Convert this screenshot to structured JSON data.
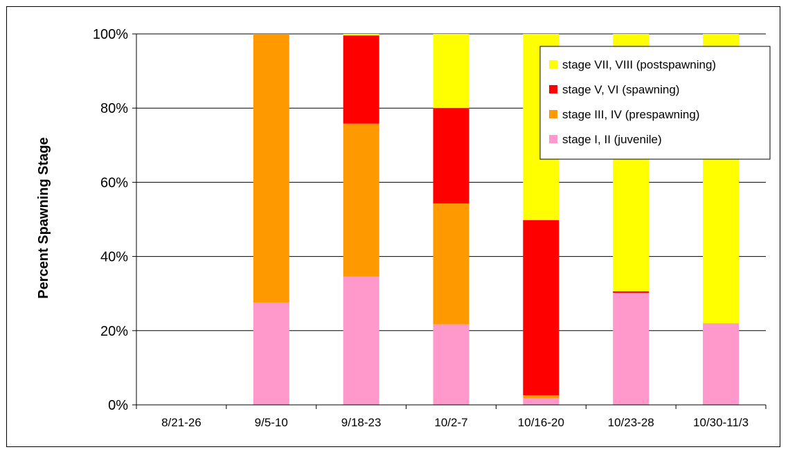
{
  "chart_data": {
    "type": "bar",
    "stacked": true,
    "percent": true,
    "title": "",
    "xlabel": "",
    "ylabel": "Percent Spawning Stage",
    "ylim": [
      0,
      100
    ],
    "yticks": [
      "0%",
      "20%",
      "40%",
      "60%",
      "80%",
      "100%"
    ],
    "ytick_values": [
      0,
      20,
      40,
      60,
      80,
      100
    ],
    "grid": true,
    "legend_position": "top-right",
    "categories": [
      "8/21-26",
      "9/5-10",
      "9/18-23",
      "10/2-7",
      "10/16-20",
      "10/23-28",
      "10/30-11/3"
    ],
    "series": [
      {
        "name": "stage I, II (juvenile)",
        "color": "#ff99cc",
        "values": [
          0,
          27.6,
          34.6,
          21.7,
          1.8,
          30.2,
          22.0
        ]
      },
      {
        "name": "stage III, IV (prespawning)",
        "color": "#ff9900",
        "values": [
          0,
          72.4,
          41.2,
          32.6,
          0.8,
          0,
          0
        ]
      },
      {
        "name": "stage V, VI (spawning)",
        "color": "#ff0000",
        "values": [
          0,
          0,
          23.8,
          25.7,
          47.2,
          0.4,
          0
        ]
      },
      {
        "name": "stage VII, VIII (postspawning)",
        "color": "#ffff00",
        "values": [
          0,
          0,
          0.4,
          20.0,
          50.2,
          69.4,
          78.0
        ]
      }
    ]
  }
}
